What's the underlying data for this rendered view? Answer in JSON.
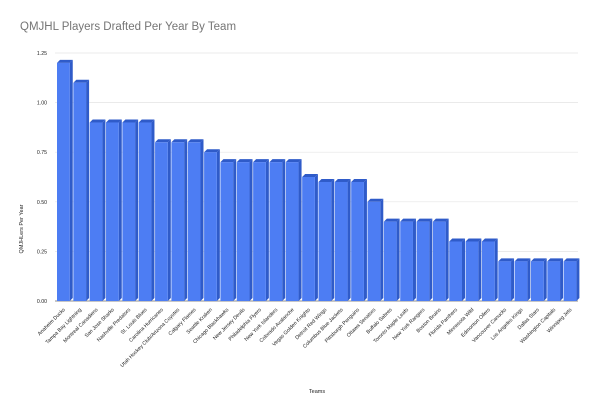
{
  "chart_data": {
    "type": "bar",
    "title": "QMJHL Players Drafted Per Year By Team",
    "xlabel": "Teams",
    "ylabel": "QMJHLers Per Year",
    "ylim": [
      0,
      1.25
    ],
    "yticks": [
      "0.00",
      "0.25",
      "0.50",
      "0.75",
      "1.00",
      "1.25"
    ],
    "grid": true,
    "categories": [
      "Anaheim Ducks",
      "Tampa Bay Lightning",
      "Montreal Canadiens",
      "San Jose Sharks",
      "Nashville Predators",
      "St. Louis Blues",
      "Carolina Hurricanes",
      "Utah Hockey Club/Arizona Coyotes",
      "Calgary Flames",
      "Seattle Kraken",
      "Chicago Blackhawks",
      "New Jersey Devils",
      "Philadelphia Flyers",
      "New York Islanders",
      "Colorado Avalanche",
      "Vegas Golden Knights",
      "Detroit Red Wings",
      "Columbus Blue Jackets",
      "Pittsburgh Penguins",
      "Ottawa Senators",
      "Buffalo Sabres",
      "Toronto Maple Leafs",
      "New York Rangers",
      "Boston Bruins",
      "Florida Panthers",
      "Minnesota Wild",
      "Edmonton Oilers",
      "Vancouver Canucks",
      "Los Angeles Kings",
      "Dallas Stars",
      "Washington Capitals",
      "Winnipeg Jets"
    ],
    "values": [
      1.2,
      1.1,
      0.9,
      0.9,
      0.9,
      0.9,
      0.8,
      0.8,
      0.8,
      0.75,
      0.7,
      0.7,
      0.7,
      0.7,
      0.7,
      0.625,
      0.6,
      0.6,
      0.6,
      0.5,
      0.4,
      0.4,
      0.4,
      0.4,
      0.3,
      0.3,
      0.3,
      0.2,
      0.2,
      0.2,
      0.2,
      0.2
    ],
    "colors": {
      "bar": "#4d7df3",
      "bar_side": "#2f5bc9",
      "grid": "#e4e4e4",
      "axis": "#666666"
    }
  }
}
